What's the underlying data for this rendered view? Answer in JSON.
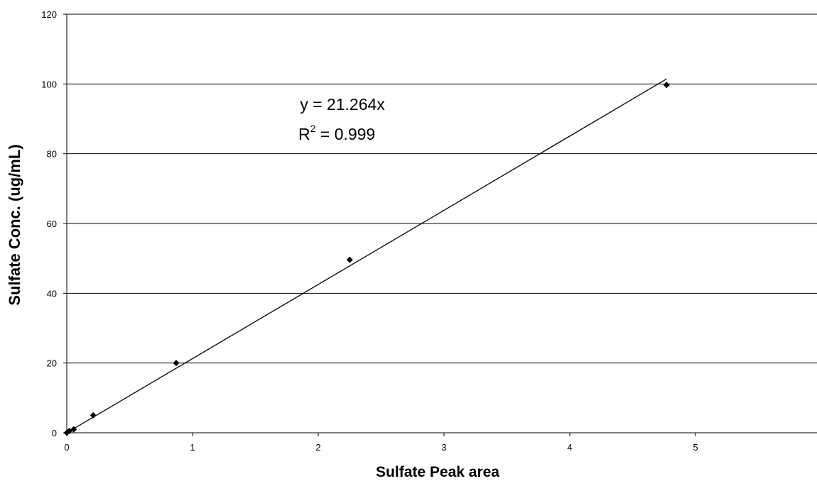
{
  "chart_data": {
    "type": "scatter",
    "title": "",
    "xlabel": "Sulfate Peak area",
    "ylabel": "Sulfate Conc. (ug/mL)",
    "xlim": [
      0,
      6
    ],
    "ylim": [
      0,
      120
    ],
    "x_ticks": [
      "0",
      "1",
      "2",
      "3",
      "4",
      "5"
    ],
    "y_ticks": [
      "0",
      "20",
      "40",
      "60",
      "80",
      "100",
      "120"
    ],
    "grid": "horizontal",
    "series": [
      {
        "marker": "diamond",
        "color": "#000000",
        "points": [
          {
            "x": 0.0,
            "y": 0.0
          },
          {
            "x": 0.02,
            "y": 0.5
          },
          {
            "x": 0.055,
            "y": 1.0
          },
          {
            "x": 0.21,
            "y": 5.0
          },
          {
            "x": 0.87,
            "y": 20.0
          },
          {
            "x": 2.25,
            "y": 49.6
          },
          {
            "x": 4.77,
            "y": 99.7
          }
        ]
      }
    ],
    "trendline": {
      "type": "linear-through-origin",
      "slope": 21.264,
      "x_range": [
        0,
        4.77
      ],
      "equation": "y = 21.264x",
      "r2_prefix": "R",
      "r2_sup": "2",
      "r2_value": " = 0.999"
    }
  }
}
